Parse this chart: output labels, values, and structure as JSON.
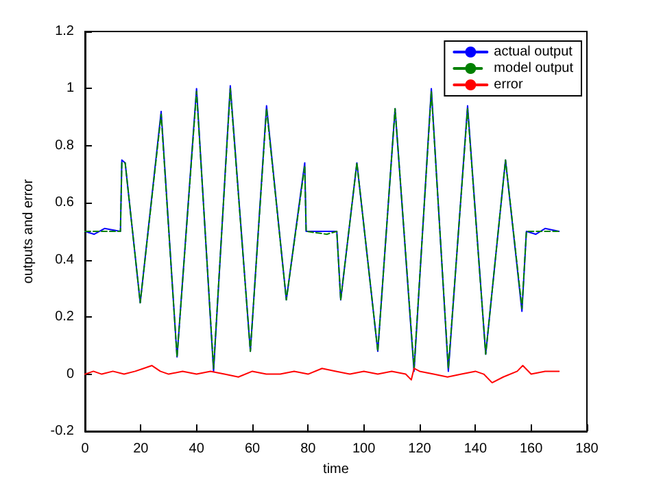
{
  "chart_data": {
    "type": "line",
    "xlabel": "time",
    "ylabel": "outputs and error",
    "xlim": [
      0,
      180
    ],
    "xticks": [
      0,
      20,
      40,
      60,
      80,
      100,
      120,
      140,
      160,
      180
    ],
    "ylim": [
      -0.2,
      1.2
    ],
    "yticks": [
      -0.2,
      0,
      0.2,
      0.4,
      0.6,
      0.8,
      1,
      1.2
    ],
    "grid": false,
    "legend": "top right",
    "marker": "none",
    "series": [
      {
        "name": "actual output",
        "color": "#0000ff",
        "line_style": "solid",
        "x": [
          0,
          3.3,
          7,
          12.7,
          13.2,
          14.4,
          19.8,
          27.3,
          33,
          40,
          46.1,
          52.1,
          59.3,
          65.1,
          72.2,
          78.8,
          79.3,
          86.7,
          90.3,
          91.7,
          97.5,
          105,
          111.2,
          118,
          124.2,
          130.3,
          137.2,
          143.7,
          150.8,
          156.7,
          158.3,
          161.7,
          165,
          170
        ],
        "values": [
          0.5,
          0.49,
          0.51,
          0.5,
          0.75,
          0.74,
          0.25,
          0.92,
          0.06,
          1.0,
          0.01,
          1.01,
          0.08,
          0.94,
          0.26,
          0.74,
          0.5,
          0.5,
          0.5,
          0.26,
          0.74,
          0.08,
          0.93,
          0.01,
          1.0,
          0.01,
          0.94,
          0.07,
          0.75,
          0.22,
          0.5,
          0.49,
          0.51,
          0.5
        ]
      },
      {
        "name": "model output",
        "color": "#008000",
        "line_style": "dashed",
        "x": [
          0,
          3.3,
          7,
          12.7,
          13.2,
          14.4,
          19.8,
          27.3,
          33,
          40,
          46.1,
          52.1,
          59.3,
          65.1,
          72.2,
          78.8,
          79.3,
          86.7,
          90.3,
          91.7,
          97.5,
          105,
          111.2,
          118,
          124.2,
          130.3,
          137.2,
          143.7,
          150.8,
          156.7,
          158.3,
          161.7,
          165,
          170
        ],
        "values": [
          0.5,
          0.5,
          0.5,
          0.5,
          0.74,
          0.74,
          0.25,
          0.91,
          0.06,
          0.99,
          0.02,
          1.0,
          0.08,
          0.93,
          0.26,
          0.73,
          0.5,
          0.49,
          0.5,
          0.26,
          0.74,
          0.08,
          0.93,
          0.02,
          0.99,
          0.02,
          0.93,
          0.07,
          0.75,
          0.23,
          0.5,
          0.5,
          0.5,
          0.5
        ]
      },
      {
        "name": "error",
        "color": "#ff0000",
        "line_style": "solid",
        "x": [
          0,
          3,
          6,
          10,
          14,
          18,
          21,
          24,
          27,
          30,
          35,
          40,
          45,
          50,
          55,
          60,
          65,
          70,
          75,
          80,
          85,
          90,
          95,
          100,
          105,
          110,
          115,
          117,
          118,
          120,
          125,
          130,
          135,
          140,
          143,
          146,
          150,
          155,
          157,
          160,
          165,
          170
        ],
        "values": [
          0.0,
          0.01,
          0.0,
          0.01,
          0.0,
          0.01,
          0.02,
          0.03,
          0.01,
          0.0,
          0.01,
          0.0,
          0.01,
          0.0,
          -0.01,
          0.01,
          0.0,
          0.0,
          0.01,
          0.0,
          0.02,
          0.01,
          0.0,
          0.01,
          0.0,
          0.01,
          0.0,
          -0.02,
          0.02,
          0.01,
          0.0,
          -0.01,
          0.0,
          0.01,
          0.0,
          -0.03,
          -0.01,
          0.01,
          0.03,
          0.0,
          0.01,
          0.01
        ]
      }
    ]
  }
}
